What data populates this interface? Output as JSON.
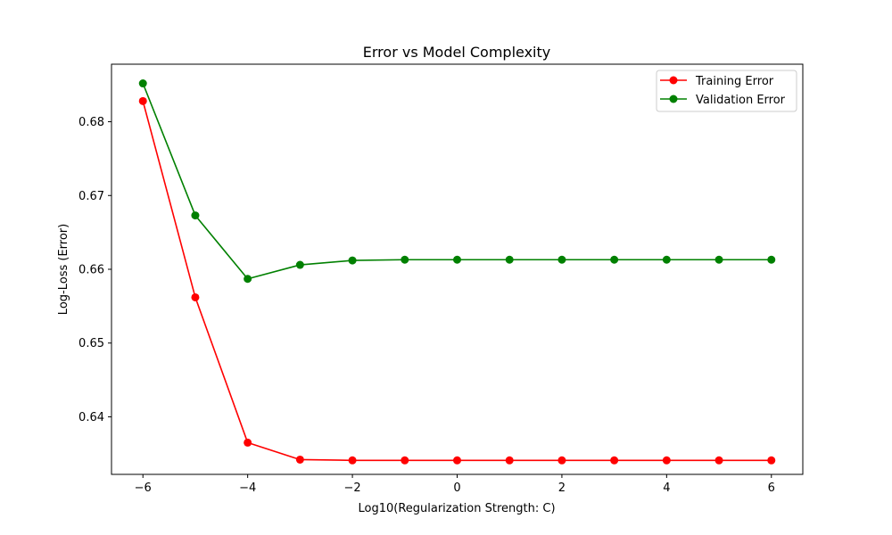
{
  "chart_data": {
    "type": "line",
    "title": "Error vs Model Complexity",
    "xlabel": "Log10(Regularization Strength: C)",
    "ylabel": "Log-Loss (Error)",
    "xlim": [
      -6.6,
      6.6
    ],
    "ylim": [
      0.6322,
      0.6878
    ],
    "xticks": [
      -6,
      -4,
      -2,
      0,
      2,
      4,
      6
    ],
    "xtick_labels": [
      "−6",
      "−4",
      "−2",
      "0",
      "2",
      "4",
      "6"
    ],
    "yticks": [
      0.64,
      0.65,
      0.66,
      0.67,
      0.68
    ],
    "ytick_labels": [
      "0.64",
      "0.65",
      "0.66",
      "0.67",
      "0.68"
    ],
    "grid": false,
    "legend_position": "top-right",
    "x": [
      -6,
      -5,
      -4,
      -3,
      -2,
      -1,
      0,
      1,
      2,
      3,
      4,
      5,
      6
    ],
    "series": [
      {
        "name": "Training Error",
        "color": "#ff0000",
        "values": [
          0.6828,
          0.6562,
          0.6365,
          0.6342,
          0.6341,
          0.6341,
          0.6341,
          0.6341,
          0.6341,
          0.6341,
          0.6341,
          0.6341,
          0.6341
        ]
      },
      {
        "name": "Validation Error",
        "color": "#008000",
        "values": [
          0.6852,
          0.6673,
          0.6587,
          0.6606,
          0.6612,
          0.6613,
          0.6613,
          0.6613,
          0.6613,
          0.6613,
          0.6613,
          0.6613,
          0.6613
        ]
      }
    ]
  }
}
